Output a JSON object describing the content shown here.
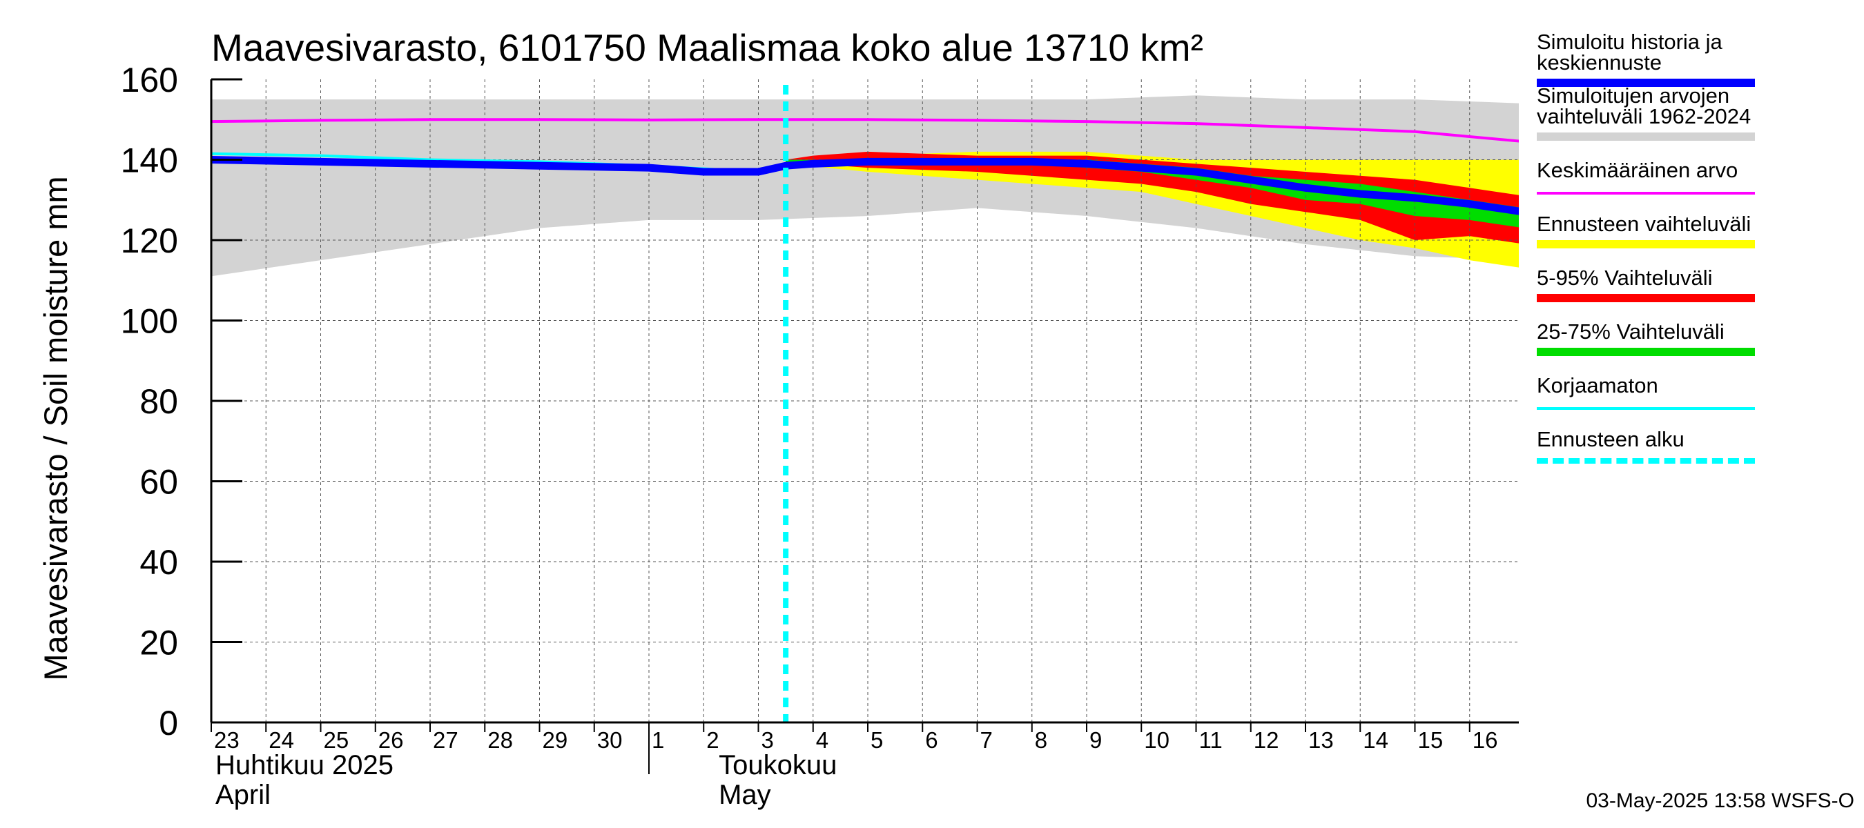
{
  "chart_data": {
    "type": "area",
    "title": "Maavesivarasto, 6101750 Maalismaa koko alue 13710 km²",
    "ylabel": "Maavesivarasto / Soil moisture   mm",
    "ylim": [
      0,
      160
    ],
    "yticks": [
      0,
      20,
      40,
      60,
      80,
      100,
      120,
      140,
      160
    ],
    "x_day_range": [
      0,
      24
    ],
    "forecast_start_day": 10.5,
    "x_tick_labels": [
      "23",
      "24",
      "25",
      "26",
      "27",
      "28",
      "29",
      "30",
      "1",
      "2",
      "3",
      "4",
      "5",
      "6",
      "7",
      "8",
      "9",
      "10",
      "11",
      "12",
      "13",
      "14",
      "15",
      "16"
    ],
    "month_labels": [
      {
        "fi": "Huhtikuu  2025",
        "en": "April",
        "day": 0
      },
      {
        "fi": "Toukokuu",
        "en": "May",
        "day": 9.2
      }
    ],
    "series": [
      {
        "name": "Simuloitujen arvojen vaihteluväli 1962-2024",
        "kind": "band",
        "color": "#d3d3d3",
        "x": [
          0,
          2,
          4,
          6,
          8,
          10,
          12,
          14,
          16,
          18,
          20,
          22,
          24
        ],
        "lower": [
          111,
          115,
          119,
          123,
          125,
          125,
          126,
          128,
          126,
          123,
          119,
          116,
          115
        ],
        "upper": [
          155,
          155,
          155,
          155,
          155,
          155,
          155,
          155,
          155,
          156,
          155,
          155,
          154
        ]
      },
      {
        "name": "Ennusteen vaihteluväli",
        "kind": "band",
        "color": "#ffff00",
        "x": [
          10.5,
          12,
          14,
          15,
          16,
          17,
          18,
          19,
          20,
          21,
          22,
          23,
          24
        ],
        "lower": [
          139,
          137,
          135,
          134,
          133,
          132,
          129,
          126,
          123,
          120,
          118,
          115,
          113
        ],
        "upper": [
          140,
          141,
          142,
          142,
          142,
          141,
          140,
          140,
          140,
          140,
          140,
          140,
          140
        ]
      },
      {
        "name": "5-95% Vaihteluväli",
        "kind": "band",
        "color": "#ff0000",
        "x": [
          10.5,
          11,
          12,
          14,
          15,
          16,
          17,
          18,
          19,
          20,
          21,
          22,
          23,
          24
        ],
        "lower": [
          139,
          139,
          138,
          137,
          136,
          135,
          134,
          132,
          129,
          127,
          125,
          120,
          121,
          119
        ],
        "upper": [
          140,
          141,
          142,
          141,
          141,
          141,
          140,
          139,
          138,
          137,
          136,
          135,
          133,
          131
        ]
      },
      {
        "name": "25-75% Vaihteluväli",
        "kind": "band",
        "color": "#00dd00",
        "x": [
          10.5,
          11,
          12,
          14,
          15,
          16,
          17,
          18,
          19,
          20,
          21,
          22,
          23,
          24
        ],
        "lower": [
          139,
          140,
          140,
          139,
          139,
          138,
          137,
          135,
          133,
          130,
          129,
          126,
          125,
          123
        ],
        "upper": [
          140,
          140,
          140,
          140,
          140,
          140,
          139,
          138,
          136,
          135,
          134,
          132,
          130,
          128
        ]
      },
      {
        "name": "Keskimääräinen arvo",
        "kind": "line",
        "color": "#ff00ff",
        "x": [
          0,
          2,
          4,
          6,
          8,
          10,
          12,
          14,
          16,
          18,
          20,
          22,
          24
        ],
        "values": [
          149.5,
          149.8,
          150,
          150,
          149.9,
          150,
          150,
          149.8,
          149.5,
          149,
          148,
          147,
          144.5
        ]
      },
      {
        "name": "Korjaamaton",
        "kind": "line",
        "color": "#00ffff",
        "x": [
          0,
          2,
          4,
          6,
          8,
          10,
          10.5
        ],
        "values": [
          141.5,
          141,
          140,
          139.5,
          138.5,
          137,
          139
        ]
      },
      {
        "name": "Simuloitu historia ja keskiennuste",
        "kind": "line",
        "color": "#0000ff",
        "x": [
          0,
          2,
          4,
          6,
          8,
          9,
          10,
          10.5,
          11,
          12,
          14,
          15,
          16,
          17,
          18,
          19,
          20,
          21,
          22,
          23,
          24
        ],
        "values": [
          140,
          139.5,
          139,
          138.5,
          138,
          137,
          137,
          138.5,
          139,
          139.5,
          139.5,
          139.5,
          139,
          138,
          137,
          135,
          133,
          131.5,
          130.5,
          129,
          127
        ]
      }
    ]
  },
  "legend": [
    {
      "label": "Simuloitu historia ja\nkeskiennuste",
      "color": "#0000ff",
      "style": "thick"
    },
    {
      "label": "Simuloitujen arvojen\nvaihteluväli 1962-2024",
      "color": "#d3d3d3",
      "style": "thick"
    },
    {
      "label": "Keskimääräinen arvo",
      "color": "#ff00ff",
      "style": "thin"
    },
    {
      "label": "Ennusteen vaihteluväli",
      "color": "#ffff00",
      "style": "thick"
    },
    {
      "label": "5-95% Vaihteluväli",
      "color": "#ff0000",
      "style": "thick"
    },
    {
      "label": "25-75% Vaihteluväli",
      "color": "#00dd00",
      "style": "thick"
    },
    {
      "label": "Korjaamaton",
      "color": "#00ffff",
      "style": "thin"
    },
    {
      "label": "Ennusteen alku",
      "color": "#00ffff",
      "style": "dashed"
    }
  ],
  "timestamp": "03-May-2025 13:58 WSFS-O"
}
